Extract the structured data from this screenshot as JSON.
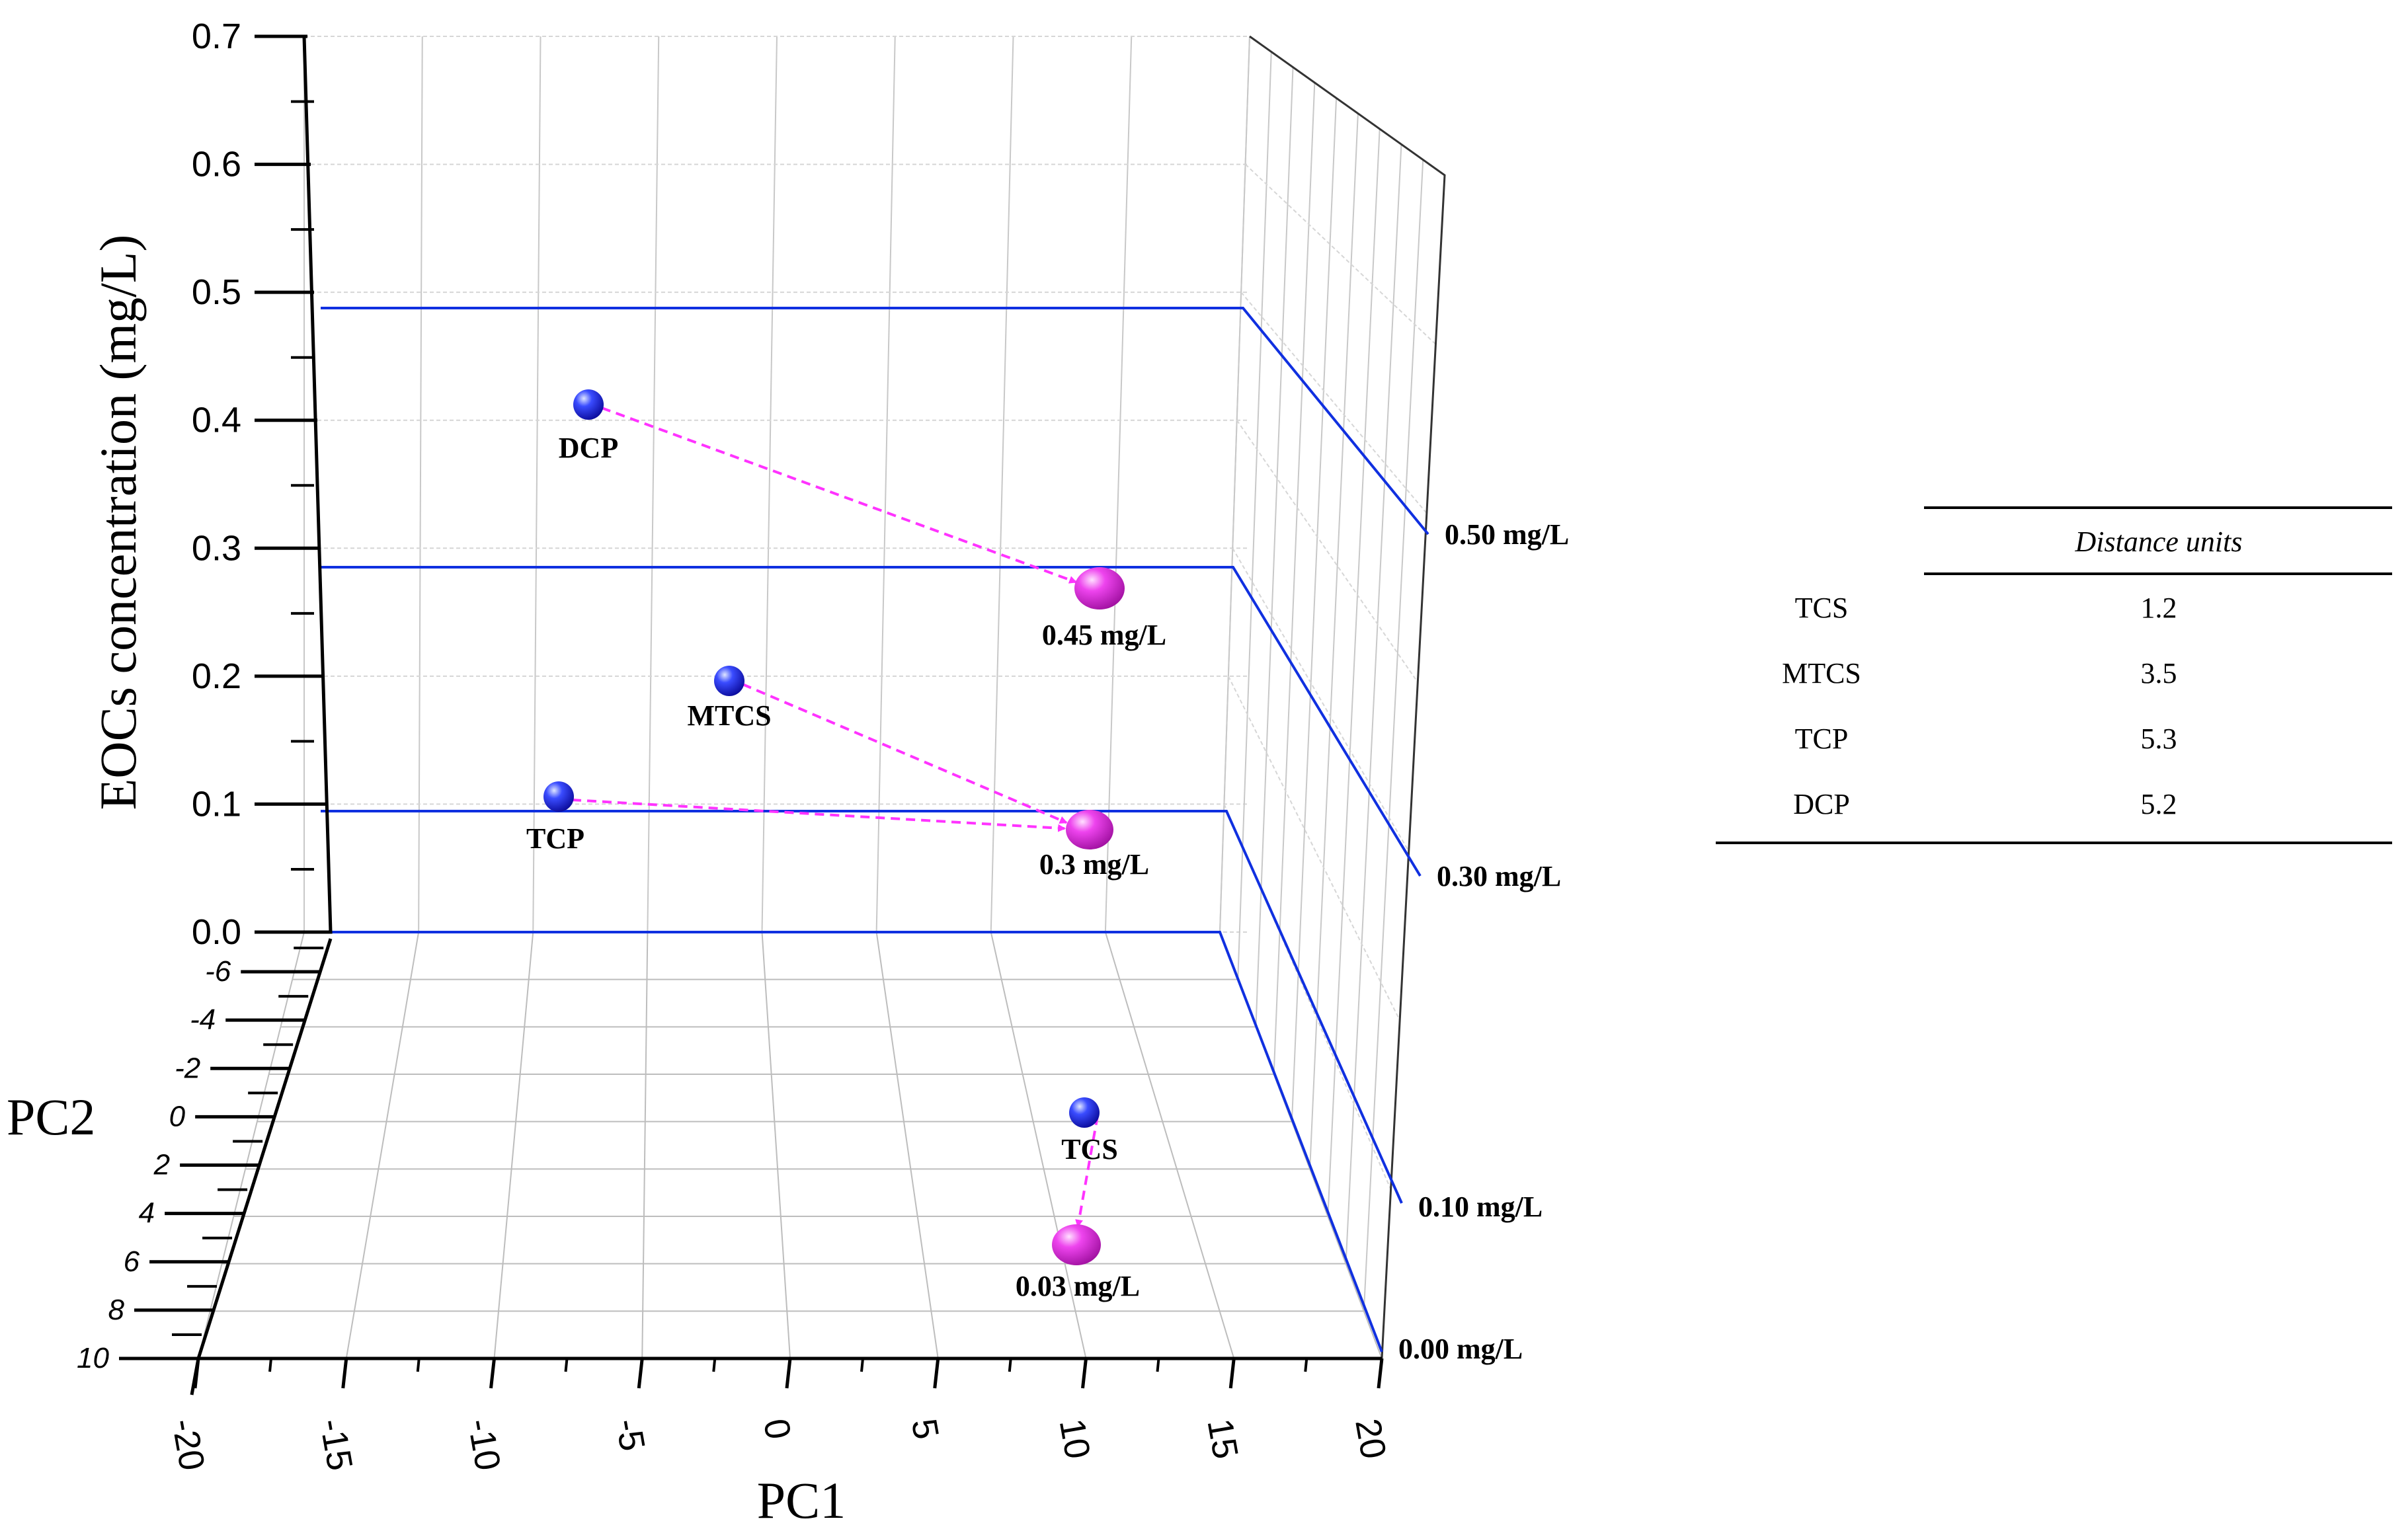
{
  "chart_data": {
    "type": "scatter3d",
    "title": "",
    "xlabel": "PC1",
    "ylabel": "EOCs concentration (mg/L)",
    "zlabel": "PC2",
    "y_ticks": [
      "0.0",
      "0.1",
      "0.2",
      "0.3",
      "0.4",
      "0.5",
      "0.6",
      "0.7"
    ],
    "x_ticks": [
      "-20",
      "-15",
      "-10",
      "-5",
      "0",
      "5",
      "10",
      "15",
      "20"
    ],
    "z_ticks": [
      "-6",
      "-4",
      "-2",
      "0",
      "2",
      "4",
      "6",
      "8",
      "10"
    ],
    "ylim": [
      0,
      0.7
    ],
    "xlim": [
      -20,
      20
    ],
    "zlim": [
      -8,
      10
    ],
    "concentration_planes": [
      {
        "value": 0.0,
        "label": "0.00 mg/L"
      },
      {
        "value": 0.1,
        "label": "0.10 mg/L"
      },
      {
        "value": 0.3,
        "label": "0.30 mg/L"
      },
      {
        "value": 0.5,
        "label": "0.50 mg/L"
      }
    ],
    "compounds": [
      {
        "name": "DCP",
        "pc1": -6,
        "concentration": 0.42,
        "target_label": "0.45 mg/L",
        "target_concentration": 0.45
      },
      {
        "name": "MTCS",
        "pc1": -1,
        "concentration": 0.2,
        "target_label": "0.3 mg/L",
        "target_concentration": 0.3
      },
      {
        "name": "TCP",
        "pc1": -8,
        "concentration": 0.11,
        "target_label": "0.3 mg/L",
        "target_concentration": 0.3
      },
      {
        "name": "TCS",
        "pc1": 10,
        "concentration": 0.0,
        "target_label": "0.03 mg/L",
        "target_concentration": 0.03
      }
    ],
    "colors": {
      "compound": "#1010e0",
      "target": "#e030e0",
      "plane": "#1030e0",
      "arrow": "#ff33ff"
    }
  },
  "table": {
    "header": "Distance units",
    "rows": [
      {
        "name": "TCS",
        "value": "1.2"
      },
      {
        "name": "MTCS",
        "value": "3.5"
      },
      {
        "name": "TCP",
        "value": "5.3"
      },
      {
        "name": "DCP",
        "value": "5.2"
      }
    ]
  }
}
